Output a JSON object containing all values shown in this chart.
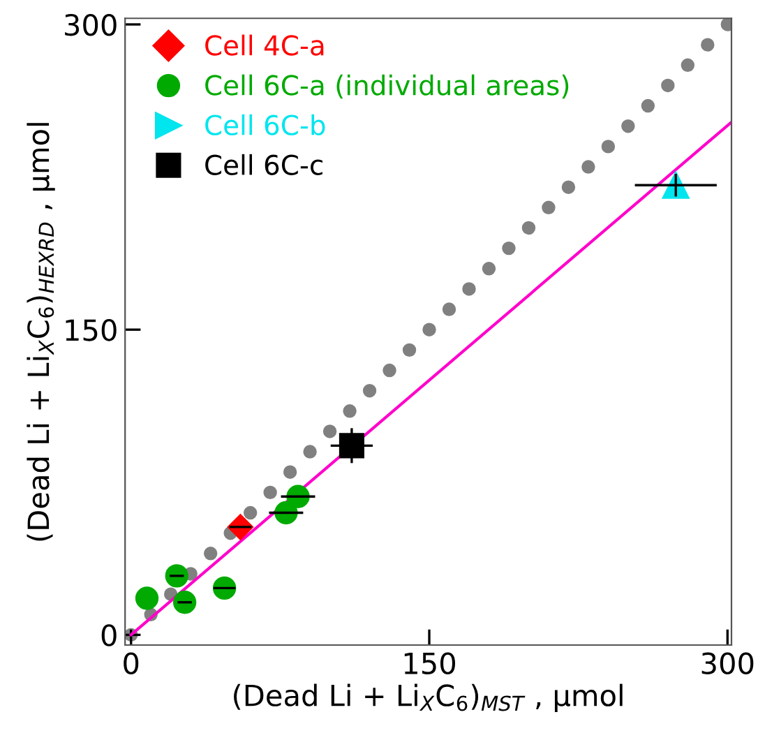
{
  "chart_data": {
    "type": "scatter",
    "xlabel": "(Dead Li + Li$_{X}$C$_{6}$)$_{MST}$ , µmol",
    "ylabel": "(Dead Li + Li$_{X}$C$_{6}$)$_{HEXRD}$ , µmol",
    "xlim": [
      -3,
      302
    ],
    "ylim": [
      -5,
      303
    ],
    "xticks": [
      0,
      150,
      300
    ],
    "yticks": [
      0,
      150,
      300
    ],
    "grid": false,
    "legend": "top left",
    "series": [
      {
        "marker": "circle",
        "color": "#808080",
        "x": [
          0,
          10,
          20,
          30,
          40,
          50,
          60,
          70,
          80,
          90,
          100,
          110,
          120,
          130,
          140,
          150,
          160,
          170,
          180,
          190,
          200,
          210,
          220,
          230,
          240,
          250,
          260,
          270,
          280,
          290,
          300
        ],
        "values": [
          0,
          10,
          20,
          30,
          40,
          50,
          60,
          70,
          80,
          90,
          100,
          110,
          120,
          130,
          140,
          150,
          160,
          170,
          180,
          190,
          200,
          210,
          220,
          230,
          240,
          250,
          260,
          270,
          280,
          290,
          300
        ]
      },
      {
        "type": "line",
        "marker": "none",
        "line_style": "solid",
        "color": "#ff00cc",
        "x": [
          0,
          302
        ],
        "values": [
          0,
          252
        ]
      },
      {
        "name": "Cell 4C-a",
        "marker": "diamond",
        "color": "#ff0000",
        "x": [
          55
        ],
        "values": [
          53
        ],
        "xerrors": [
          5
        ]
      },
      {
        "name": "Cell 6C-a (individual areas)",
        "marker": "circle",
        "color": "#00aa00",
        "x": [
          8,
          23,
          27,
          47,
          78,
          84
        ],
        "values": [
          18,
          29,
          16,
          23,
          60,
          68
        ],
        "xerrors": [
          null,
          3,
          3,
          5,
          8,
          8
        ]
      },
      {
        "name": "Cell 6C-b",
        "marker": "triangle",
        "color": "#00e5ee",
        "x": [
          274
        ],
        "values": [
          221
        ],
        "xerrors": [
          20
        ],
        "errors": [
          5
        ]
      },
      {
        "name": "Cell 6C-c",
        "marker": "square",
        "color": "#000000",
        "x": [
          111
        ],
        "values": [
          93
        ],
        "xerrors": [
          10
        ],
        "errors": [
          8
        ]
      }
    ]
  }
}
